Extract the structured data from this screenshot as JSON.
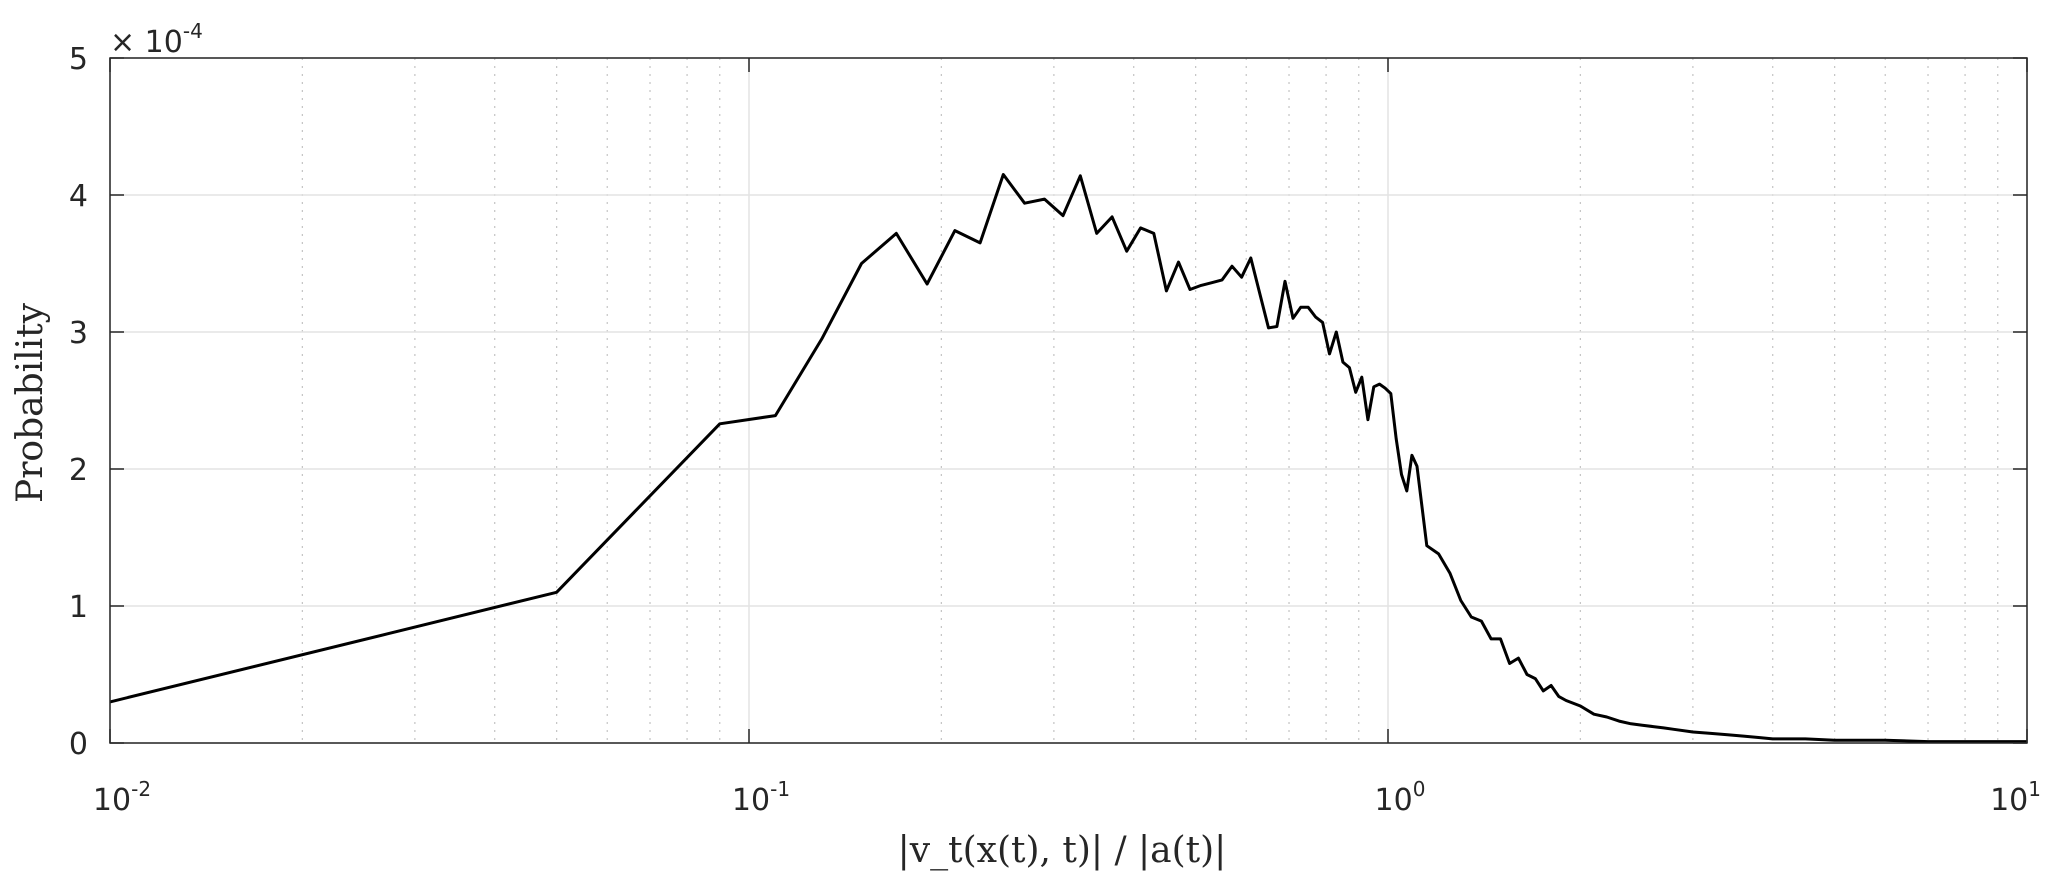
{
  "chart_data": {
    "type": "line",
    "title": "",
    "xlabel": "|v_t(x(t), t)| / |a(t)|",
    "ylabel": "Probability",
    "x_scale": "log",
    "xlim": [
      0.01,
      10
    ],
    "ylim": [
      0,
      0.0005
    ],
    "y_multiplier_label": "× 10",
    "y_multiplier_exponent": "-4",
    "x_ticks": [
      {
        "value": 0.01,
        "base": "10",
        "exp": "-2"
      },
      {
        "value": 0.1,
        "base": "10",
        "exp": "-1"
      },
      {
        "value": 1,
        "base": "10",
        "exp": "0"
      },
      {
        "value": 10,
        "base": "10",
        "exp": "1"
      }
    ],
    "y_ticks": [
      {
        "value": 0,
        "label": "0"
      },
      {
        "value": 0.0001,
        "label": "1"
      },
      {
        "value": 0.0002,
        "label": "2"
      },
      {
        "value": 0.0003,
        "label": "3"
      },
      {
        "value": 0.0004,
        "label": "4"
      },
      {
        "value": 0.0005,
        "label": "5"
      }
    ],
    "grid": true,
    "line_color": "#000000",
    "series": [
      {
        "x": [
          0.01,
          0.05,
          0.09,
          0.11,
          0.13,
          0.15,
          0.17,
          0.19,
          0.21,
          0.23,
          0.25,
          0.27,
          0.29,
          0.31,
          0.33,
          0.35,
          0.37,
          0.39,
          0.41,
          0.43,
          0.45,
          0.47,
          0.49,
          0.51,
          0.53,
          0.55,
          0.57,
          0.59,
          0.61,
          0.63,
          0.65,
          0.67,
          0.69,
          0.71,
          0.73,
          0.75,
          0.77,
          0.79,
          0.81,
          0.83,
          0.85,
          0.87,
          0.89,
          0.91,
          0.93,
          0.95,
          0.97,
          0.99,
          1.01,
          1.03,
          1.05,
          1.07,
          1.09,
          1.11,
          1.15,
          1.2,
          1.25,
          1.3,
          1.35,
          1.4,
          1.45,
          1.5,
          1.55,
          1.6,
          1.65,
          1.7,
          1.75,
          1.8,
          1.85,
          1.9,
          2.0,
          2.1,
          2.2,
          2.3,
          2.4,
          2.5,
          2.6,
          2.7,
          2.8,
          3.0,
          3.2,
          3.4,
          3.6,
          3.8,
          4.0,
          4.5,
          5.0,
          5.5,
          6.0,
          7.0,
          8.0,
          9.0,
          10.0
        ],
        "y": [
          3e-05,
          0.00011,
          0.000233,
          0.000239,
          0.000295,
          0.00035,
          0.000372,
          0.000335,
          0.000374,
          0.000365,
          0.000415,
          0.000394,
          0.000397,
          0.000385,
          0.000414,
          0.000372,
          0.000384,
          0.000359,
          0.000376,
          0.000372,
          0.00033,
          0.000351,
          0.000331,
          0.000334,
          0.000336,
          0.000338,
          0.000348,
          0.00034,
          0.000354,
          0.000328,
          0.000303,
          0.000304,
          0.000337,
          0.00031,
          0.000318,
          0.000318,
          0.000311,
          0.000307,
          0.000284,
          0.0003,
          0.000278,
          0.000274,
          0.000256,
          0.000267,
          0.000236,
          0.00026,
          0.000262,
          0.000259,
          0.000255,
          0.000222,
          0.000196,
          0.000184,
          0.00021,
          0.000202,
          0.000144,
          0.000138,
          0.000124,
          0.000104,
          9.2e-05,
          8.9e-05,
          7.6e-05,
          7.6e-05,
          5.8e-05,
          6.2e-05,
          5e-05,
          4.7e-05,
          3.8e-05,
          4.2e-05,
          3.4e-05,
          3.1e-05,
          2.7e-05,
          2.1e-05,
          1.9e-05,
          1.6e-05,
          1.4e-05,
          1.3e-05,
          1.2e-05,
          1.1e-05,
          1e-05,
          8e-06,
          7e-06,
          6e-06,
          5e-06,
          4e-06,
          3e-06,
          3e-06,
          2e-06,
          2e-06,
          2e-06,
          1e-06,
          1e-06,
          1e-06,
          1e-06
        ]
      }
    ]
  }
}
